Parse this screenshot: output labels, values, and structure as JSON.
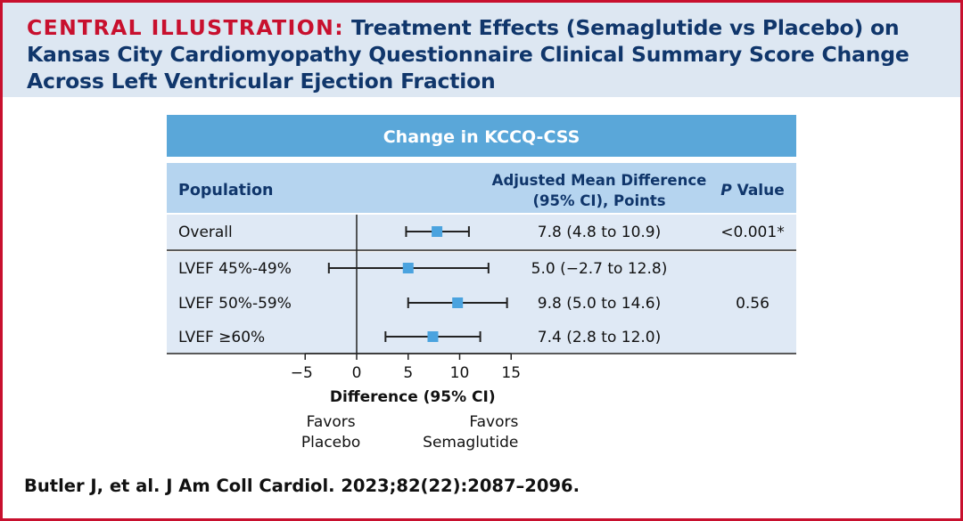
{
  "header": {
    "label": "CENTRAL ILLUSTRATION:",
    "title": "Treatment Effects (Semaglutide vs Placebo) on Kansas City Cardiomyopathy Questionnaire Clinical Summary Score Change Across Left Ventricular Ejection Fraction"
  },
  "colors": {
    "accent_red": "#c8102e",
    "title_navy": "#10366b",
    "band_blue": "#5aa7d9",
    "header_row_blue": "#b5d4ef",
    "row_tint": "#dfe9f5",
    "marker_blue": "#4aa3df"
  },
  "chart_data": {
    "type": "forest",
    "title": "Change in KCCQ-CSS",
    "columns": {
      "population": "Population",
      "estimate_line1": "Adjusted Mean Difference",
      "estimate_line2": "(95% CI), Points",
      "p_italic": "P",
      "p_rest": " Value"
    },
    "rows": [
      {
        "label": "Overall",
        "estimate": 7.8,
        "ci_low": 4.8,
        "ci_high": 10.9,
        "text": "7.8 (4.8 to 10.9)"
      },
      {
        "label": "LVEF 45%-49%",
        "estimate": 5.0,
        "ci_low": -2.7,
        "ci_high": 12.8,
        "text": "5.0 (−2.7 to 12.8)"
      },
      {
        "label": "LVEF 50%-59%",
        "estimate": 9.8,
        "ci_low": 5.0,
        "ci_high": 14.6,
        "text": "9.8 (5.0 to 14.6)"
      },
      {
        "label": "LVEF ≥60%",
        "estimate": 7.4,
        "ci_low": 2.8,
        "ci_high": 12.0,
        "text": "7.4 (2.8 to 12.0)"
      }
    ],
    "p_values": {
      "overall": "<0.001*",
      "subgroups": "0.56"
    },
    "x_axis": {
      "ticks": [
        -5,
        0,
        5,
        10,
        15
      ],
      "tick_labels": [
        "−5",
        "0",
        "5",
        "10",
        "15"
      ],
      "label": "Difference (95% CI)",
      "range": [
        -5,
        15
      ],
      "reference_line": 0
    },
    "favors": {
      "left_line1": "Favors",
      "left_line2": "Placebo",
      "right_line1": "Favors",
      "right_line2": "Semaglutide"
    }
  },
  "citation": "Butler J, et al. J Am Coll Cardiol. 2023;82(22):2087–2096."
}
